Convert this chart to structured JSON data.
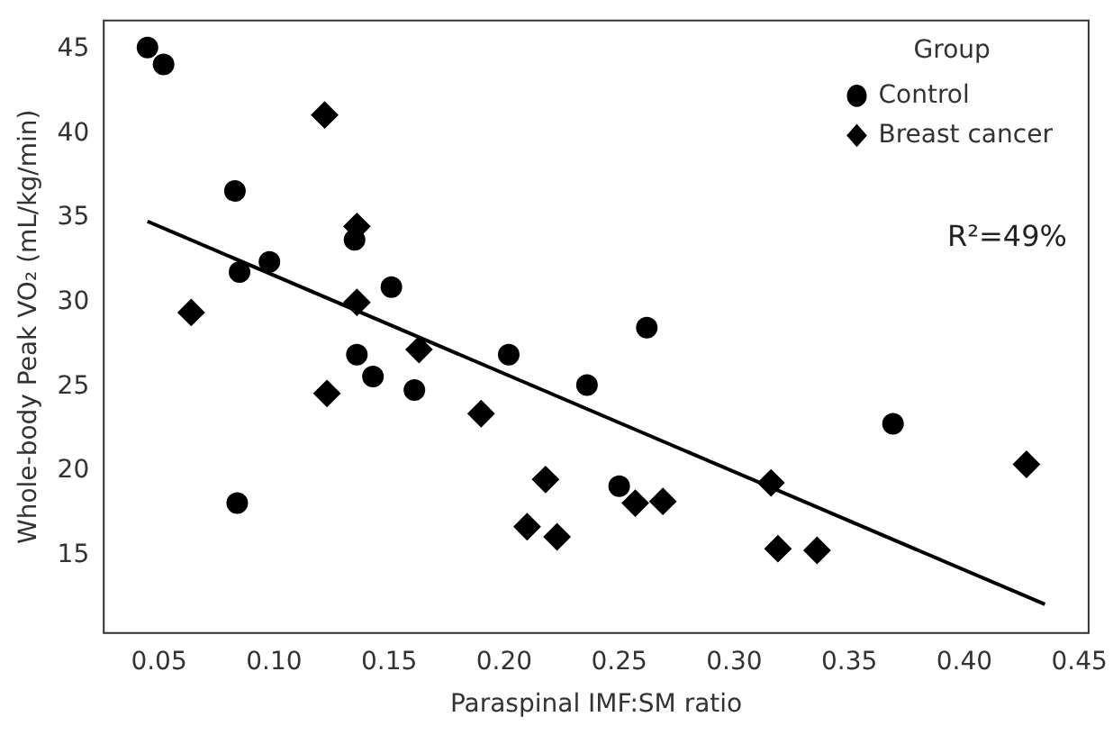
{
  "chart_data": {
    "type": "scatter",
    "xlabel": "Paraspinal IMF:SM ratio",
    "ylabel": "Whole-body Peak VO₂ (mL/kg/min)",
    "legend_title": "Group",
    "legend": "top right",
    "grid": false,
    "xlim": [
      0.026,
      0.454
    ],
    "ylim": [
      10.4,
      46.7
    ],
    "xticks": [
      {
        "value": 0.05,
        "label": "0.05"
      },
      {
        "value": 0.1,
        "label": "0.10"
      },
      {
        "value": 0.15,
        "label": "0.15"
      },
      {
        "value": 0.2,
        "label": "0.20"
      },
      {
        "value": 0.25,
        "label": "0.25"
      },
      {
        "value": 0.3,
        "label": "0.30"
      },
      {
        "value": 0.35,
        "label": "0.35"
      },
      {
        "value": 0.4,
        "label": "0.40"
      },
      {
        "value": 0.45,
        "label": "0.45"
      }
    ],
    "yticks": [
      15,
      20,
      25,
      30,
      35,
      40,
      45
    ],
    "annotations": [
      "R²=49%"
    ],
    "series": [
      {
        "name": "Control",
        "color": "#000000",
        "marker": "circle",
        "x": [
          0.045,
          0.052,
          0.083,
          0.085,
          0.098,
          0.084,
          0.135,
          0.151,
          0.136,
          0.143,
          0.161,
          0.202,
          0.262,
          0.236,
          0.25,
          0.369
        ],
        "values": [
          45.1,
          44.1,
          36.6,
          31.8,
          32.4,
          18.1,
          33.7,
          30.9,
          26.9,
          25.6,
          24.8,
          26.9,
          28.5,
          25.1,
          19.1,
          22.8
        ]
      },
      {
        "name": "Breast cancer",
        "color": "#000000",
        "marker": "diamond",
        "x": [
          0.122,
          0.136,
          0.064,
          0.136,
          0.163,
          0.123,
          0.19,
          0.218,
          0.21,
          0.223,
          0.257,
          0.269,
          0.316,
          0.319,
          0.336,
          0.427
        ],
        "values": [
          41.1,
          34.5,
          29.4,
          30.0,
          27.2,
          24.6,
          23.4,
          19.5,
          16.7,
          16.1,
          18.1,
          18.2,
          19.3,
          15.4,
          15.3,
          20.4
        ]
      },
      {
        "type": "line",
        "color": "#000000",
        "marker": "none",
        "x": [
          0.045,
          0.435
        ],
        "values": [
          34.8,
          12.1
        ]
      }
    ]
  }
}
